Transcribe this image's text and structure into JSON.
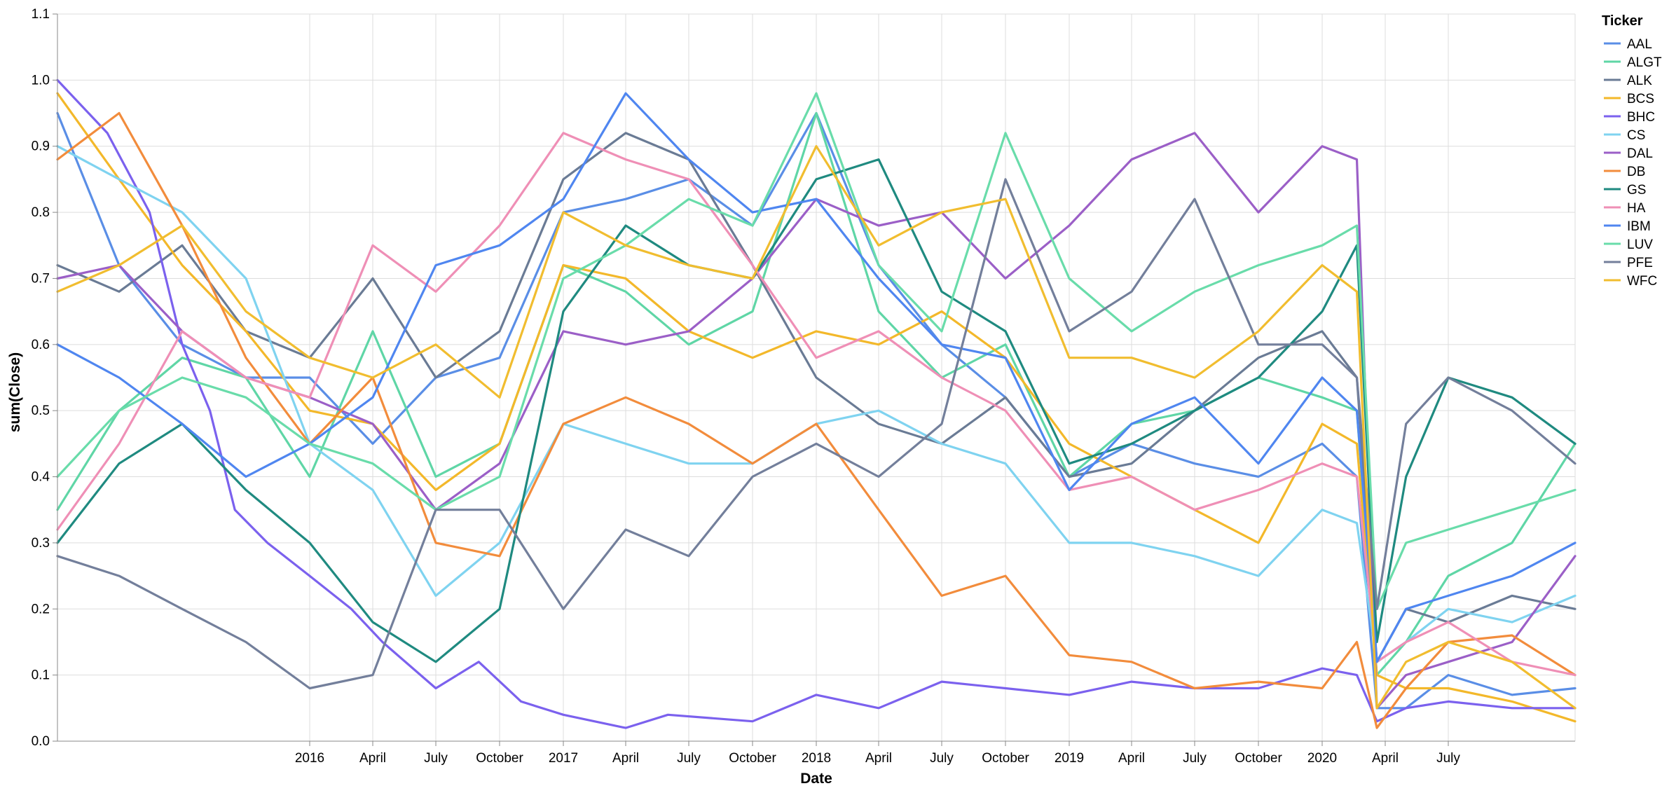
{
  "chart_data": {
    "type": "line",
    "xlabel": "Date",
    "ylabel": "sum(Close)",
    "x_domain": [
      "2015-01-02",
      "2020-12-31"
    ],
    "ylim": [
      0,
      1.1
    ],
    "grid": true,
    "legend_title": "Ticker",
    "legend_position": "top-right",
    "y_ticks": [
      "0.0",
      "0.1",
      "0.2",
      "0.3",
      "0.4",
      "0.5",
      "0.6",
      "0.7",
      "0.8",
      "0.9",
      "1.0",
      "1.1"
    ],
    "x_ticks": [
      {
        "date": "2016-01-01",
        "label": "2016"
      },
      {
        "date": "2016-04-01",
        "label": "April"
      },
      {
        "date": "2016-07-01",
        "label": "July"
      },
      {
        "date": "2016-10-01",
        "label": "October"
      },
      {
        "date": "2017-01-01",
        "label": "2017"
      },
      {
        "date": "2017-04-01",
        "label": "April"
      },
      {
        "date": "2017-07-01",
        "label": "July"
      },
      {
        "date": "2017-10-01",
        "label": "October"
      },
      {
        "date": "2018-01-01",
        "label": "2018"
      },
      {
        "date": "2018-04-01",
        "label": "April"
      },
      {
        "date": "2018-07-01",
        "label": "July"
      },
      {
        "date": "2018-10-01",
        "label": "October"
      },
      {
        "date": "2019-01-01",
        "label": "2019"
      },
      {
        "date": "2019-04-01",
        "label": "April"
      },
      {
        "date": "2019-07-01",
        "label": "July"
      },
      {
        "date": "2019-10-01",
        "label": "October"
      },
      {
        "date": "2020-01-01",
        "label": "2020"
      },
      {
        "date": "2020-04-01",
        "label": "April"
      },
      {
        "date": "2020-07-01",
        "label": "July"
      }
    ],
    "series": [
      {
        "name": "AAL",
        "color": "#5a8ee6",
        "x": [
          "2015-01-02",
          "2015-04-01",
          "2015-07-01",
          "2015-10-01",
          "2016-01-01",
          "2016-04-01",
          "2016-07-01",
          "2016-10-01",
          "2017-01-01",
          "2017-04-01",
          "2017-07-01",
          "2017-10-01",
          "2018-01-01",
          "2018-04-01",
          "2018-07-01",
          "2018-10-01",
          "2019-01-01",
          "2019-04-01",
          "2019-07-01",
          "2019-10-01",
          "2020-01-01",
          "2020-02-20",
          "2020-03-20",
          "2020-05-01",
          "2020-07-01",
          "2020-10-01",
          "2020-12-31"
        ],
        "y": [
          0.95,
          0.72,
          0.6,
          0.55,
          0.55,
          0.45,
          0.55,
          0.58,
          0.8,
          0.82,
          0.85,
          0.78,
          0.95,
          0.72,
          0.6,
          0.52,
          0.4,
          0.45,
          0.42,
          0.4,
          0.45,
          0.4,
          0.05,
          0.05,
          0.1,
          0.07,
          0.08
        ]
      },
      {
        "name": "ALGT",
        "color": "#5fd6a6",
        "x": [
          "2015-01-02",
          "2015-04-01",
          "2015-07-01",
          "2015-10-01",
          "2016-01-01",
          "2016-04-01",
          "2016-07-01",
          "2016-10-01",
          "2017-01-01",
          "2017-04-01",
          "2017-07-01",
          "2017-10-01",
          "2018-01-01",
          "2018-04-01",
          "2018-07-01",
          "2018-10-01",
          "2019-01-01",
          "2019-04-01",
          "2019-07-01",
          "2019-10-01",
          "2020-01-01",
          "2020-02-20",
          "2020-03-20",
          "2020-05-01",
          "2020-07-01",
          "2020-10-01",
          "2020-12-31"
        ],
        "y": [
          0.35,
          0.5,
          0.58,
          0.55,
          0.4,
          0.62,
          0.4,
          0.45,
          0.72,
          0.68,
          0.6,
          0.65,
          0.95,
          0.65,
          0.55,
          0.6,
          0.4,
          0.48,
          0.5,
          0.55,
          0.52,
          0.5,
          0.1,
          0.15,
          0.25,
          0.3,
          0.45
        ]
      },
      {
        "name": "ALK",
        "color": "#6a7b95",
        "x": [
          "2015-01-02",
          "2015-04-01",
          "2015-07-01",
          "2015-10-01",
          "2016-01-01",
          "2016-04-01",
          "2016-07-01",
          "2016-10-01",
          "2017-01-01",
          "2017-04-01",
          "2017-07-01",
          "2017-10-01",
          "2018-01-01",
          "2018-04-01",
          "2018-07-01",
          "2018-10-01",
          "2019-01-01",
          "2019-04-01",
          "2019-07-01",
          "2019-10-01",
          "2020-01-01",
          "2020-02-20",
          "2020-03-20",
          "2020-05-01",
          "2020-07-01",
          "2020-10-01",
          "2020-12-31"
        ],
        "y": [
          0.72,
          0.68,
          0.75,
          0.62,
          0.58,
          0.7,
          0.55,
          0.62,
          0.85,
          0.92,
          0.88,
          0.72,
          0.55,
          0.48,
          0.45,
          0.52,
          0.4,
          0.42,
          0.5,
          0.58,
          0.62,
          0.55,
          0.12,
          0.2,
          0.18,
          0.22,
          0.2
        ]
      },
      {
        "name": "BCS",
        "color": "#f3b82a",
        "x": [
          "2015-01-02",
          "2015-04-01",
          "2015-07-01",
          "2015-10-01",
          "2016-01-01",
          "2016-04-01",
          "2016-07-01",
          "2016-10-01",
          "2017-01-01",
          "2017-04-01",
          "2017-07-01",
          "2017-10-01",
          "2018-01-01",
          "2018-04-01",
          "2018-07-01",
          "2018-10-01",
          "2019-01-01",
          "2019-04-01",
          "2019-07-01",
          "2019-10-01",
          "2020-01-01",
          "2020-02-20",
          "2020-03-20",
          "2020-05-01",
          "2020-07-01",
          "2020-10-01",
          "2020-12-31"
        ],
        "y": [
          0.98,
          0.85,
          0.72,
          0.62,
          0.5,
          0.48,
          0.38,
          0.45,
          0.72,
          0.7,
          0.62,
          0.58,
          0.62,
          0.6,
          0.65,
          0.58,
          0.45,
          0.4,
          0.35,
          0.3,
          0.48,
          0.45,
          0.1,
          0.08,
          0.08,
          0.06,
          0.03
        ]
      },
      {
        "name": "BHC",
        "color": "#7b61ee",
        "x": [
          "2015-01-02",
          "2015-03-15",
          "2015-05-15",
          "2015-07-01",
          "2015-08-10",
          "2015-09-15",
          "2015-11-01",
          "2016-01-01",
          "2016-03-01",
          "2016-04-15",
          "2016-07-01",
          "2016-09-01",
          "2016-11-01",
          "2017-01-01",
          "2017-04-01",
          "2017-06-01",
          "2017-10-01",
          "2018-01-01",
          "2018-04-01",
          "2018-07-01",
          "2018-10-01",
          "2019-01-01",
          "2019-04-01",
          "2019-07-01",
          "2019-10-01",
          "2020-01-01",
          "2020-02-20",
          "2020-03-20",
          "2020-05-01",
          "2020-07-01",
          "2020-10-01",
          "2020-12-31"
        ],
        "y": [
          1.0,
          0.92,
          0.8,
          0.6,
          0.5,
          0.35,
          0.3,
          0.25,
          0.2,
          0.15,
          0.08,
          0.12,
          0.06,
          0.04,
          0.02,
          0.04,
          0.03,
          0.07,
          0.05,
          0.09,
          0.08,
          0.07,
          0.09,
          0.08,
          0.08,
          0.11,
          0.1,
          0.03,
          0.05,
          0.06,
          0.05,
          0.05
        ]
      },
      {
        "name": "CS",
        "color": "#7fd3f0",
        "x": [
          "2015-01-02",
          "2015-04-01",
          "2015-07-01",
          "2015-10-01",
          "2016-01-01",
          "2016-04-01",
          "2016-07-01",
          "2016-10-01",
          "2017-01-01",
          "2017-04-01",
          "2017-07-01",
          "2017-10-01",
          "2018-01-01",
          "2018-04-01",
          "2018-07-01",
          "2018-10-01",
          "2019-01-01",
          "2019-04-01",
          "2019-07-01",
          "2019-10-01",
          "2020-01-01",
          "2020-02-20",
          "2020-03-20",
          "2020-05-01",
          "2020-07-01",
          "2020-10-01",
          "2020-12-31"
        ],
        "y": [
          0.9,
          0.85,
          0.8,
          0.7,
          0.45,
          0.38,
          0.22,
          0.3,
          0.48,
          0.45,
          0.42,
          0.42,
          0.48,
          0.5,
          0.45,
          0.42,
          0.3,
          0.3,
          0.28,
          0.25,
          0.35,
          0.33,
          0.12,
          0.15,
          0.2,
          0.18,
          0.22
        ]
      },
      {
        "name": "DAL",
        "color": "#9b5fc7",
        "x": [
          "2015-01-02",
          "2015-04-01",
          "2015-07-01",
          "2015-10-01",
          "2016-01-01",
          "2016-04-01",
          "2016-07-01",
          "2016-10-01",
          "2017-01-01",
          "2017-04-01",
          "2017-07-01",
          "2017-10-01",
          "2018-01-01",
          "2018-04-01",
          "2018-07-01",
          "2018-10-01",
          "2019-01-01",
          "2019-04-01",
          "2019-07-01",
          "2019-10-01",
          "2020-01-01",
          "2020-02-20",
          "2020-03-20",
          "2020-05-01",
          "2020-07-01",
          "2020-10-01",
          "2020-12-31"
        ],
        "y": [
          0.7,
          0.72,
          0.62,
          0.55,
          0.52,
          0.48,
          0.35,
          0.42,
          0.62,
          0.6,
          0.62,
          0.7,
          0.82,
          0.78,
          0.8,
          0.7,
          0.78,
          0.88,
          0.92,
          0.8,
          0.9,
          0.88,
          0.05,
          0.1,
          0.12,
          0.15,
          0.28
        ]
      },
      {
        "name": "DB",
        "color": "#f28c3c",
        "x": [
          "2015-01-02",
          "2015-04-01",
          "2015-07-01",
          "2015-10-01",
          "2016-01-01",
          "2016-04-01",
          "2016-07-01",
          "2016-10-01",
          "2017-01-01",
          "2017-04-01",
          "2017-07-01",
          "2017-10-01",
          "2018-01-01",
          "2018-04-01",
          "2018-07-01",
          "2018-10-01",
          "2019-01-01",
          "2019-04-01",
          "2019-07-01",
          "2019-10-01",
          "2020-01-01",
          "2020-02-20",
          "2020-03-20",
          "2020-05-01",
          "2020-07-01",
          "2020-10-01",
          "2020-12-31"
        ],
        "y": [
          0.88,
          0.95,
          0.78,
          0.58,
          0.45,
          0.55,
          0.3,
          0.28,
          0.48,
          0.52,
          0.48,
          0.42,
          0.48,
          0.35,
          0.22,
          0.25,
          0.13,
          0.12,
          0.08,
          0.09,
          0.08,
          0.15,
          0.02,
          0.08,
          0.15,
          0.16,
          0.1
        ]
      },
      {
        "name": "GS",
        "color": "#1f8a80",
        "x": [
          "2015-01-02",
          "2015-04-01",
          "2015-07-01",
          "2015-10-01",
          "2016-01-01",
          "2016-04-01",
          "2016-07-01",
          "2016-10-01",
          "2017-01-01",
          "2017-04-01",
          "2017-07-01",
          "2017-10-01",
          "2018-01-01",
          "2018-04-01",
          "2018-07-01",
          "2018-10-01",
          "2019-01-01",
          "2019-04-01",
          "2019-07-01",
          "2019-10-01",
          "2020-01-01",
          "2020-02-20",
          "2020-03-20",
          "2020-05-01",
          "2020-07-01",
          "2020-10-01",
          "2020-12-31"
        ],
        "y": [
          0.3,
          0.42,
          0.48,
          0.38,
          0.3,
          0.18,
          0.12,
          0.2,
          0.65,
          0.78,
          0.72,
          0.7,
          0.85,
          0.88,
          0.68,
          0.62,
          0.42,
          0.45,
          0.5,
          0.55,
          0.65,
          0.75,
          0.15,
          0.4,
          0.55,
          0.52,
          0.45
        ]
      },
      {
        "name": "HA",
        "color": "#ef8fb6",
        "x": [
          "2015-01-02",
          "2015-04-01",
          "2015-07-01",
          "2015-10-01",
          "2016-01-01",
          "2016-04-01",
          "2016-07-01",
          "2016-10-01",
          "2017-01-01",
          "2017-04-01",
          "2017-07-01",
          "2017-10-01",
          "2018-01-01",
          "2018-04-01",
          "2018-07-01",
          "2018-10-01",
          "2019-01-01",
          "2019-04-01",
          "2019-07-01",
          "2019-10-01",
          "2020-01-01",
          "2020-02-20",
          "2020-03-20",
          "2020-05-01",
          "2020-07-01",
          "2020-10-01",
          "2020-12-31"
        ],
        "y": [
          0.32,
          0.45,
          0.62,
          0.55,
          0.52,
          0.75,
          0.68,
          0.78,
          0.92,
          0.88,
          0.85,
          0.72,
          0.58,
          0.62,
          0.55,
          0.5,
          0.38,
          0.4,
          0.35,
          0.38,
          0.42,
          0.4,
          0.12,
          0.15,
          0.18,
          0.12,
          0.1
        ]
      },
      {
        "name": "IBM",
        "color": "#4f86f0",
        "x": [
          "2015-01-02",
          "2015-04-01",
          "2015-07-01",
          "2015-10-01",
          "2016-01-01",
          "2016-04-01",
          "2016-07-01",
          "2016-10-01",
          "2017-01-01",
          "2017-04-01",
          "2017-07-01",
          "2017-10-01",
          "2018-01-01",
          "2018-04-01",
          "2018-07-01",
          "2018-10-01",
          "2019-01-01",
          "2019-04-01",
          "2019-07-01",
          "2019-10-01",
          "2020-01-01",
          "2020-02-20",
          "2020-03-20",
          "2020-05-01",
          "2020-07-01",
          "2020-10-01",
          "2020-12-31"
        ],
        "y": [
          0.6,
          0.55,
          0.48,
          0.4,
          0.45,
          0.52,
          0.72,
          0.75,
          0.82,
          0.98,
          0.88,
          0.8,
          0.82,
          0.7,
          0.6,
          0.58,
          0.38,
          0.48,
          0.52,
          0.42,
          0.55,
          0.5,
          0.12,
          0.2,
          0.22,
          0.25,
          0.3
        ]
      },
      {
        "name": "LUV",
        "color": "#69dcaa",
        "x": [
          "2015-01-02",
          "2015-04-01",
          "2015-07-01",
          "2015-10-01",
          "2016-01-01",
          "2016-04-01",
          "2016-07-01",
          "2016-10-01",
          "2017-01-01",
          "2017-04-01",
          "2017-07-01",
          "2017-10-01",
          "2018-01-01",
          "2018-04-01",
          "2018-07-01",
          "2018-10-01",
          "2019-01-01",
          "2019-04-01",
          "2019-07-01",
          "2019-10-01",
          "2020-01-01",
          "2020-02-20",
          "2020-03-20",
          "2020-05-01",
          "2020-07-01",
          "2020-10-01",
          "2020-12-31"
        ],
        "y": [
          0.4,
          0.5,
          0.55,
          0.52,
          0.45,
          0.42,
          0.35,
          0.4,
          0.7,
          0.75,
          0.82,
          0.78,
          0.98,
          0.72,
          0.62,
          0.92,
          0.7,
          0.62,
          0.68,
          0.72,
          0.75,
          0.78,
          0.2,
          0.3,
          0.32,
          0.35,
          0.38
        ]
      },
      {
        "name": "PFE",
        "color": "#737f9b",
        "x": [
          "2015-01-02",
          "2015-04-01",
          "2015-07-01",
          "2015-10-01",
          "2016-01-01",
          "2016-04-01",
          "2016-07-01",
          "2016-10-01",
          "2017-01-01",
          "2017-04-01",
          "2017-07-01",
          "2017-10-01",
          "2018-01-01",
          "2018-04-01",
          "2018-07-01",
          "2018-10-01",
          "2019-01-01",
          "2019-04-01",
          "2019-07-01",
          "2019-10-01",
          "2020-01-01",
          "2020-02-20",
          "2020-03-20",
          "2020-05-01",
          "2020-07-01",
          "2020-10-01",
          "2020-12-31"
        ],
        "y": [
          0.28,
          0.25,
          0.2,
          0.15,
          0.08,
          0.1,
          0.35,
          0.35,
          0.2,
          0.32,
          0.28,
          0.4,
          0.45,
          0.4,
          0.48,
          0.85,
          0.62,
          0.68,
          0.82,
          0.6,
          0.6,
          0.55,
          0.2,
          0.48,
          0.55,
          0.5,
          0.42
        ]
      },
      {
        "name": "WFC",
        "color": "#f1bd2f",
        "x": [
          "2015-01-02",
          "2015-04-01",
          "2015-07-01",
          "2015-10-01",
          "2016-01-01",
          "2016-04-01",
          "2016-07-01",
          "2016-10-01",
          "2017-01-01",
          "2017-04-01",
          "2017-07-01",
          "2017-10-01",
          "2018-01-01",
          "2018-04-01",
          "2018-07-01",
          "2018-10-01",
          "2019-01-01",
          "2019-04-01",
          "2019-07-01",
          "2019-10-01",
          "2020-01-01",
          "2020-02-20",
          "2020-03-20",
          "2020-05-01",
          "2020-07-01",
          "2020-10-01",
          "2020-12-31"
        ],
        "y": [
          0.68,
          0.72,
          0.78,
          0.65,
          0.58,
          0.55,
          0.6,
          0.52,
          0.8,
          0.75,
          0.72,
          0.7,
          0.9,
          0.75,
          0.8,
          0.82,
          0.58,
          0.58,
          0.55,
          0.62,
          0.72,
          0.68,
          0.05,
          0.12,
          0.15,
          0.12,
          0.05
        ]
      }
    ]
  }
}
